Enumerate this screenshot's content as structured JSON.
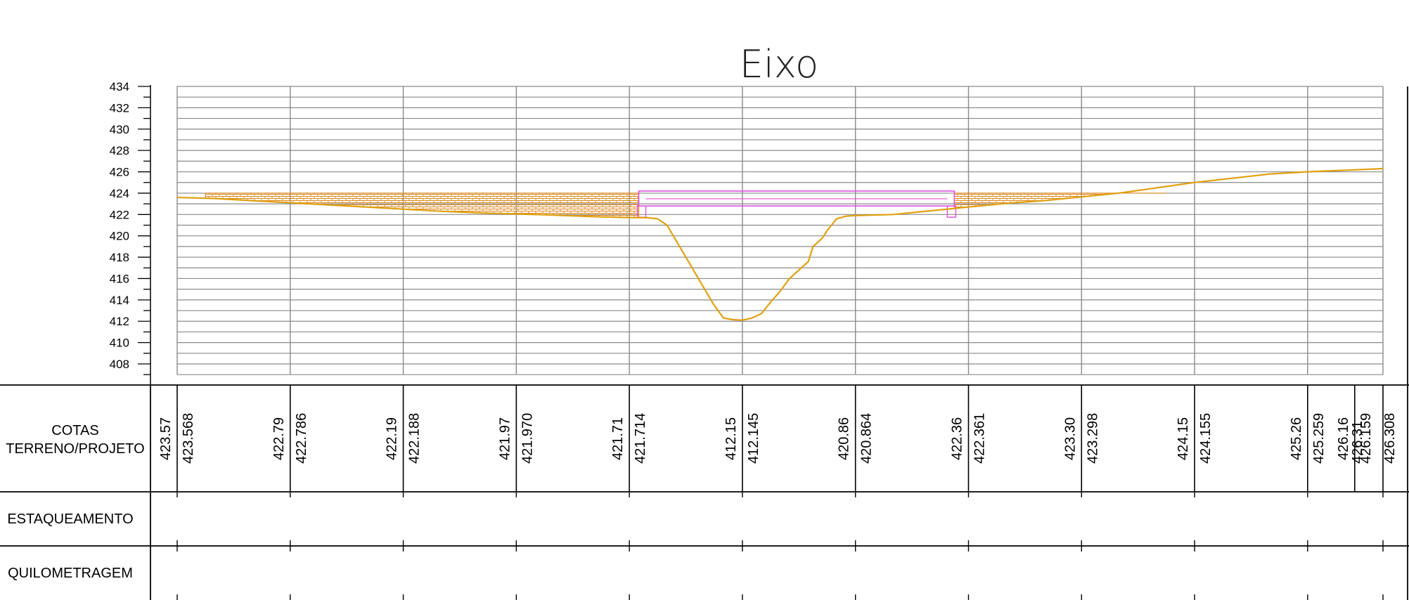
{
  "title": "Eixo",
  "colors": {
    "grid": "#8a8a8a",
    "terrain": "#e0a010",
    "project": "#e050e0",
    "hatch": "#e08a20",
    "line": "#000000"
  },
  "chart_data": {
    "type": "line",
    "ylim": [
      407,
      434
    ],
    "yticks": [
      434,
      432,
      430,
      428,
      426,
      424,
      422,
      420,
      418,
      416,
      414,
      412,
      410,
      408
    ],
    "grid": true,
    "terrain_profile": [
      [
        0,
        423.6
      ],
      [
        8,
        423.5
      ],
      [
        16,
        423.3
      ],
      [
        24,
        423.1
      ],
      [
        32,
        422.9
      ],
      [
        40,
        422.7
      ],
      [
        48,
        422.5
      ],
      [
        56,
        422.3
      ],
      [
        64,
        422.15
      ],
      [
        72,
        422.05
      ],
      [
        80,
        421.95
      ],
      [
        88,
        421.8
      ],
      [
        96,
        421.72
      ],
      [
        100,
        421.7
      ],
      [
        102,
        421.6
      ],
      [
        104,
        421.0
      ],
      [
        106,
        419.5
      ],
      [
        108,
        418.0
      ],
      [
        110,
        416.5
      ],
      [
        112,
        415.0
      ],
      [
        114,
        413.5
      ],
      [
        116,
        412.3
      ],
      [
        118,
        412.15
      ],
      [
        120,
        412.1
      ],
      [
        122,
        412.3
      ],
      [
        124,
        412.7
      ],
      [
        126,
        413.8
      ],
      [
        128,
        414.8
      ],
      [
        130,
        416.0
      ],
      [
        132,
        416.8
      ],
      [
        134,
        417.6
      ],
      [
        135,
        419.0
      ],
      [
        137,
        419.8
      ],
      [
        138,
        420.5
      ],
      [
        140,
        421.6
      ],
      [
        142,
        421.85
      ],
      [
        144,
        421.9
      ],
      [
        152,
        422.0
      ],
      [
        160,
        422.35
      ],
      [
        168,
        422.7
      ],
      [
        176,
        423.05
      ],
      [
        184,
        423.3
      ],
      [
        192,
        423.65
      ],
      [
        200,
        424.0
      ],
      [
        208,
        424.5
      ],
      [
        216,
        425.0
      ],
      [
        224,
        425.4
      ],
      [
        232,
        425.8
      ],
      [
        240,
        426.0
      ],
      [
        248,
        426.15
      ],
      [
        256,
        426.3
      ]
    ],
    "project_platform": {
      "x_start": 98,
      "x_end": 165,
      "top": 424.0,
      "bottom": 422.8
    },
    "fill_left": {
      "x_start": 6,
      "x_end": 98
    },
    "fill_right": {
      "x_start": 165,
      "x_end": 210
    },
    "stations": [
      0,
      24,
      48,
      72,
      96,
      120,
      144,
      168,
      192,
      216,
      240,
      256
    ],
    "subdivisions": [
      0,
      24,
      48,
      72,
      96,
      120,
      144,
      168,
      192,
      216,
      240,
      250,
      256
    ]
  },
  "rows": {
    "cotas": "COTAS\nTERRENO/PROJETO",
    "estaqueamento": "ESTAQUEAMENTO",
    "quilometragem": "QUILOMETRAGEM"
  },
  "cotas_values": [
    {
      "terreno": "423.57",
      "projeto": "423.568"
    },
    {
      "terreno": "422.79",
      "projeto": "422.786"
    },
    {
      "terreno": "422.19",
      "projeto": "422.188"
    },
    {
      "terreno": "421.97",
      "projeto": "421.970"
    },
    {
      "terreno": "421.71",
      "projeto": "421.714"
    },
    {
      "terreno": "412.15",
      "projeto": "412.145"
    },
    {
      "terreno": "420.86",
      "projeto": "420.864"
    },
    {
      "terreno": "422.36",
      "projeto": "422.361"
    },
    {
      "terreno": "423.30",
      "projeto": "423.298"
    },
    {
      "terreno": "424.15",
      "projeto": "424.155"
    },
    {
      "terreno": "425.26",
      "projeto": "425.259"
    },
    {
      "terreno": "426.16",
      "projeto": "426.159"
    },
    {
      "terreno": "",
      "projeto": "426.31"
    },
    {
      "terreno": "",
      "projeto": "426.308"
    }
  ]
}
